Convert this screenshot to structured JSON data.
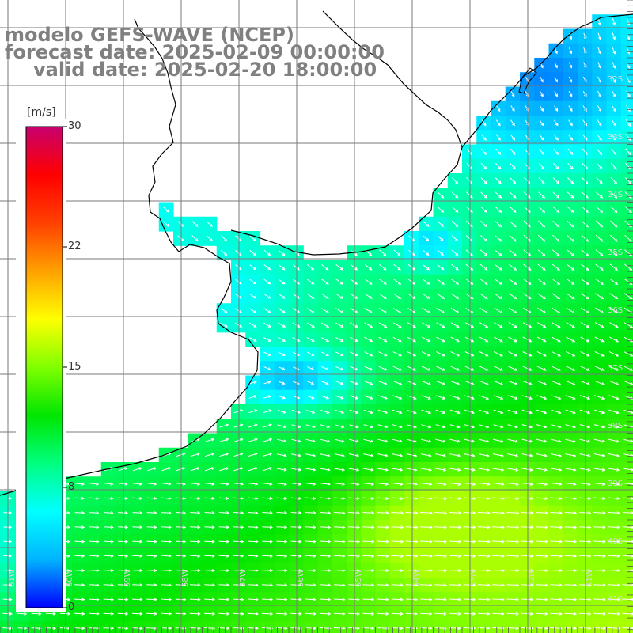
{
  "title": {
    "line1": "modelo GEFS-WAVE (NCEP)",
    "line2": "forecast date: 2025-02-09 00:00:00",
    "line3": "valid date: 2025-02-20 18:00:00"
  },
  "colorbar": {
    "unit": "[m/s]",
    "min": 0,
    "max": 30,
    "ticks": [
      "30",
      "22",
      "15",
      "8",
      "0"
    ],
    "stops": [
      "#0000ff",
      "#00b4ff",
      "#00ffff",
      "#00ff7f",
      "#00e600",
      "#80ff00",
      "#ffff00",
      "#ffa000",
      "#ff4000",
      "#ff0000",
      "#c8006e"
    ]
  },
  "latitude_labels": [
    "32S",
    "33S",
    "34S",
    "35S",
    "36S",
    "37S",
    "38S",
    "39S",
    "40S",
    "41S"
  ],
  "longitude_labels": [
    "61W",
    "60W",
    "59W",
    "58W",
    "57W",
    "56W",
    "55W",
    "54W",
    "53W",
    "52W",
    "51W"
  ],
  "wind_speed_scale": "m/s"
}
